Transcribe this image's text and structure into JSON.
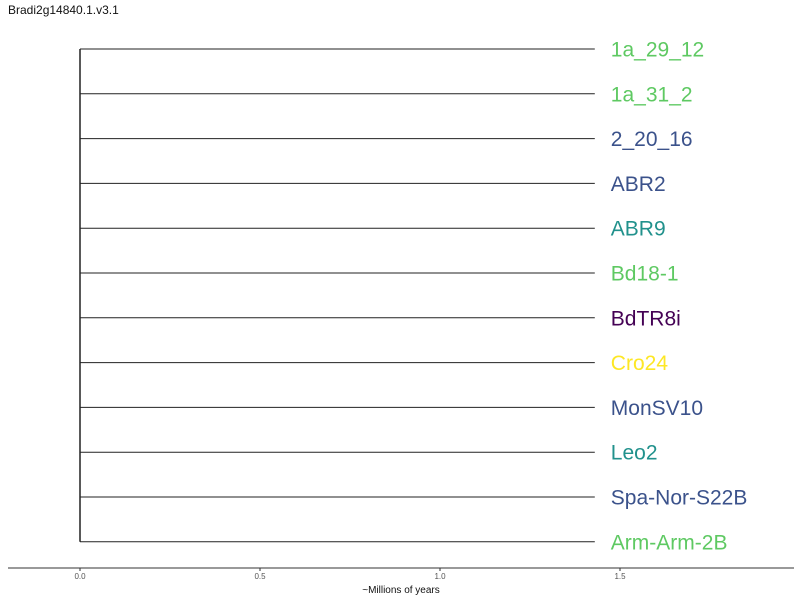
{
  "title": "Bradi2g14840.1.v3.1",
  "axis": {
    "label": "~Millions of years",
    "ticks": [
      "0.0",
      "0.5",
      "1.0",
      "1.5"
    ],
    "tick_values": [
      0,
      0.5,
      1.0,
      1.5
    ],
    "range": [
      0,
      2.0
    ]
  },
  "tree": {
    "type": "star-phylogeny",
    "branch_length": 1.43,
    "leaves": [
      {
        "name": "1a_29_12",
        "color": "#5ec962"
      },
      {
        "name": "1a_31_2",
        "color": "#5ec962"
      },
      {
        "name": "2_20_16",
        "color": "#3b528b"
      },
      {
        "name": "ABR2",
        "color": "#3b528b"
      },
      {
        "name": "ABR9",
        "color": "#21918c"
      },
      {
        "name": "Bd18-1",
        "color": "#5ec962"
      },
      {
        "name": "BdTR8i",
        "color": "#440154"
      },
      {
        "name": "Cro24",
        "color": "#fde725"
      },
      {
        "name": "MonSV10",
        "color": "#3b528b"
      },
      {
        "name": "Leo2",
        "color": "#21918c"
      },
      {
        "name": "Spa-Nor-S22B",
        "color": "#3b528b"
      },
      {
        "name": "Arm-Arm-2B",
        "color": "#5ec962"
      }
    ]
  }
}
